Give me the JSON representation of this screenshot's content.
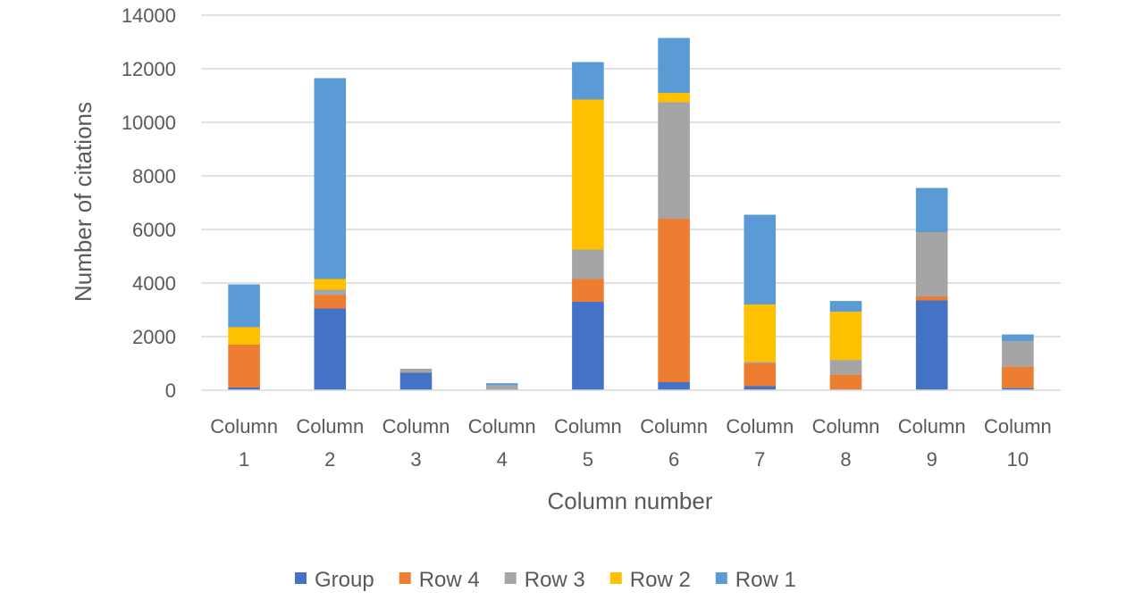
{
  "chart_data": {
    "type": "bar",
    "stacked": true,
    "categories": [
      [
        "Column",
        "1"
      ],
      [
        "Column",
        "2"
      ],
      [
        "Column",
        "3"
      ],
      [
        "Column",
        "4"
      ],
      [
        "Column",
        "5"
      ],
      [
        "Column",
        "6"
      ],
      [
        "Column",
        "7"
      ],
      [
        "Column",
        "8"
      ],
      [
        "Column",
        "9"
      ],
      [
        "Column",
        "10"
      ]
    ],
    "series": [
      {
        "name": "Group",
        "color": "#4472C4",
        "values": [
          100,
          3050,
          650,
          30,
          3300,
          300,
          150,
          30,
          3350,
          80
        ]
      },
      {
        "name": "Row 4",
        "color": "#ED7D31",
        "values": [
          1600,
          500,
          0,
          0,
          850,
          6100,
          850,
          550,
          150,
          800
        ]
      },
      {
        "name": "Row 3",
        "color": "#A5A5A5",
        "values": [
          0,
          200,
          150,
          150,
          1100,
          4350,
          50,
          550,
          2400,
          950
        ]
      },
      {
        "name": "Row 2",
        "color": "#FFC000",
        "values": [
          650,
          400,
          0,
          0,
          5600,
          350,
          2150,
          1800,
          0,
          0
        ]
      },
      {
        "name": "Row 1",
        "color": "#5B9BD5",
        "values": [
          1600,
          7500,
          0,
          80,
          1400,
          2050,
          3350,
          400,
          1650,
          250
        ]
      }
    ],
    "title": "",
    "xlabel": "Column number",
    "ylabel": "Number of citations",
    "ylim": [
      0,
      14000
    ],
    "yticks": [
      "0",
      "2000",
      "4000",
      "6000",
      "8000",
      "10000",
      "12000",
      "14000"
    ],
    "grid": true,
    "legend_position": "bottom"
  }
}
